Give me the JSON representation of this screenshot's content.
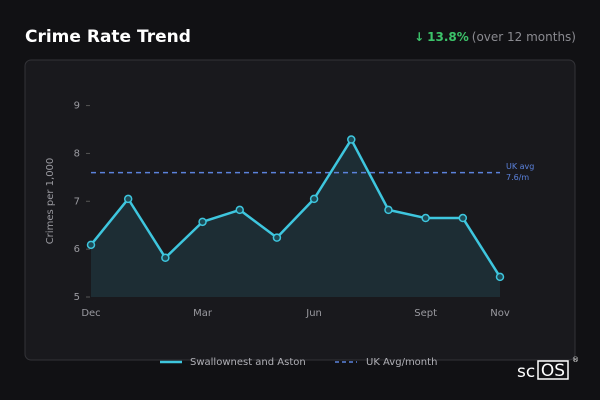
{
  "header": {
    "title": "Crime Rate Trend",
    "change_arrow": "↓",
    "change_value": "13.8%",
    "change_note": "(over 12 months)"
  },
  "chart_data": {
    "type": "line",
    "y_label": "Crimes per 1,000",
    "categories": [
      "Dec",
      null,
      null,
      "Mar",
      null,
      null,
      "Jun",
      null,
      null,
      "Sept",
      null,
      "Nov"
    ],
    "series": [
      {
        "name": "Swallownest and Aston",
        "color": "#3ec6de",
        "values": [
          6.09,
          7.05,
          5.82,
          6.57,
          6.82,
          6.24,
          7.05,
          8.29,
          6.82,
          6.65,
          6.65,
          5.42
        ]
      }
    ],
    "reference_line": {
      "name": "UK Avg/month",
      "value": 7.6,
      "color": "#5b82dc",
      "label_lines": [
        "UK avg",
        "7.6/m"
      ]
    },
    "ylim": [
      5,
      9.2
    ],
    "yticks": [
      5,
      6,
      7,
      8,
      9
    ],
    "grid": false,
    "legend": "bottom"
  },
  "branding": {
    "prefix": "sc",
    "boxed": "OS",
    "mark": "®"
  }
}
